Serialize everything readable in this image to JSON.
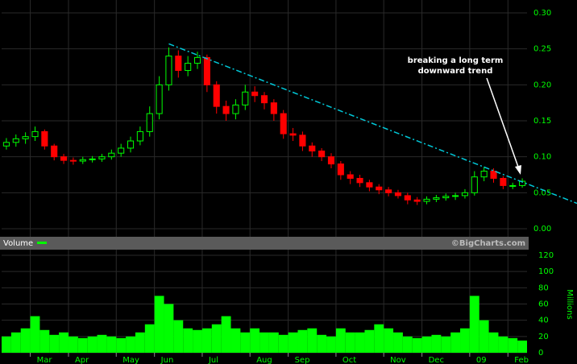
{
  "chart_data": [
    {
      "type": "candlestick",
      "categories": [
        null,
        null,
        null,
        "Mar",
        null,
        null,
        null,
        "Apr",
        null,
        null,
        null,
        null,
        "May",
        null,
        null,
        null,
        "Jun",
        null,
        null,
        null,
        null,
        "Jul",
        null,
        null,
        null,
        null,
        "Aug",
        null,
        null,
        null,
        "Sep",
        null,
        null,
        null,
        null,
        "Oct",
        null,
        null,
        null,
        null,
        "Nov",
        null,
        null,
        null,
        "Dec",
        null,
        null,
        null,
        null,
        "09",
        null,
        null,
        null,
        "Feb",
        null
      ],
      "open": [
        0.115,
        0.12,
        0.125,
        0.128,
        0.135,
        0.115,
        0.1,
        0.095,
        0.094,
        0.096,
        0.097,
        0.1,
        0.105,
        0.112,
        0.122,
        0.135,
        0.16,
        0.2,
        0.24,
        0.22,
        0.23,
        0.238,
        0.2,
        0.17,
        0.16,
        0.172,
        0.19,
        0.185,
        0.175,
        0.16,
        0.132,
        0.13,
        0.115,
        0.108,
        0.1,
        0.09,
        0.075,
        0.07,
        0.064,
        0.058,
        0.054,
        0.05,
        0.046,
        0.04,
        0.038,
        0.041,
        0.043,
        0.045,
        0.046,
        0.05,
        0.072,
        0.08,
        0.07,
        0.06,
        0.06
      ],
      "high": [
        0.126,
        0.131,
        0.134,
        0.142,
        0.138,
        0.118,
        0.104,
        0.099,
        0.1,
        0.101,
        0.104,
        0.11,
        0.118,
        0.128,
        0.142,
        0.17,
        0.212,
        0.252,
        0.248,
        0.24,
        0.246,
        0.242,
        0.205,
        0.178,
        0.18,
        0.2,
        0.198,
        0.19,
        0.18,
        0.165,
        0.14,
        0.135,
        0.12,
        0.112,
        0.105,
        0.094,
        0.08,
        0.075,
        0.068,
        0.062,
        0.058,
        0.054,
        0.05,
        0.044,
        0.045,
        0.047,
        0.049,
        0.05,
        0.055,
        0.08,
        0.086,
        0.084,
        0.073,
        0.064,
        0.07
      ],
      "low": [
        0.11,
        0.114,
        0.118,
        0.122,
        0.11,
        0.095,
        0.09,
        0.089,
        0.09,
        0.092,
        0.093,
        0.096,
        0.1,
        0.106,
        0.116,
        0.128,
        0.152,
        0.192,
        0.21,
        0.212,
        0.222,
        0.19,
        0.16,
        0.15,
        0.152,
        0.165,
        0.176,
        0.166,
        0.15,
        0.125,
        0.122,
        0.108,
        0.1,
        0.094,
        0.084,
        0.068,
        0.062,
        0.058,
        0.052,
        0.048,
        0.045,
        0.042,
        0.034,
        0.033,
        0.034,
        0.037,
        0.039,
        0.04,
        0.042,
        0.046,
        0.066,
        0.064,
        0.055,
        0.055,
        0.057
      ],
      "close": [
        0.12,
        0.125,
        0.128,
        0.135,
        0.115,
        0.1,
        0.095,
        0.094,
        0.096,
        0.097,
        0.1,
        0.105,
        0.112,
        0.122,
        0.135,
        0.16,
        0.2,
        0.24,
        0.22,
        0.23,
        0.238,
        0.2,
        0.17,
        0.16,
        0.172,
        0.19,
        0.185,
        0.175,
        0.16,
        0.132,
        0.13,
        0.115,
        0.108,
        0.1,
        0.09,
        0.075,
        0.07,
        0.064,
        0.058,
        0.054,
        0.05,
        0.046,
        0.04,
        0.038,
        0.041,
        0.043,
        0.045,
        0.046,
        0.05,
        0.072,
        0.08,
        0.07,
        0.06,
        0.06,
        0.066
      ],
      "up_color": "#00ff00",
      "down_color": "#ff0000",
      "ylim": [
        0,
        0.3
      ],
      "yticks": [
        {
          "value": 0,
          "label": "0.00"
        },
        0.05,
        {
          "value": 0.1,
          "label": "0.10"
        },
        0.15,
        {
          "value": 0.2,
          "label": "0.20"
        },
        0.25,
        {
          "value": 0.3,
          "label": "0.30"
        }
      ],
      "trendline": {
        "values": [
          0.257,
          0.065
        ],
        "color": "#00c8d8"
      },
      "annotation": [
        "breaking a long term",
        "downward trend"
      ]
    },
    {
      "type": "bar",
      "legend": "Volume",
      "watermark": "©BigCharts.com",
      "ylabel": "Millions",
      "categories": [
        null,
        null,
        null,
        "Mar",
        null,
        null,
        null,
        "Apr",
        null,
        null,
        null,
        null,
        "May",
        null,
        null,
        null,
        "Jun",
        null,
        null,
        null,
        null,
        "Jul",
        null,
        null,
        null,
        null,
        "Aug",
        null,
        null,
        null,
        "Sep",
        null,
        null,
        null,
        null,
        "Oct",
        null,
        null,
        null,
        null,
        "Nov",
        null,
        null,
        null,
        "Dec",
        null,
        null,
        null,
        null,
        "09",
        null,
        null,
        null,
        "Feb",
        null
      ],
      "values": [
        20,
        25,
        30,
        45,
        28,
        22,
        25,
        20,
        18,
        20,
        22,
        20,
        18,
        20,
        25,
        35,
        70,
        60,
        40,
        30,
        28,
        30,
        35,
        45,
        30,
        25,
        30,
        25,
        25,
        22,
        25,
        28,
        30,
        22,
        20,
        30,
        25,
        25,
        28,
        35,
        30,
        25,
        20,
        18,
        20,
        22,
        20,
        25,
        30,
        70,
        40,
        25,
        20,
        18,
        15
      ],
      "color": "#00ff00",
      "ylim": [
        0,
        120
      ],
      "yticks": [
        0,
        20,
        40,
        60,
        80,
        100,
        120
      ]
    }
  ]
}
